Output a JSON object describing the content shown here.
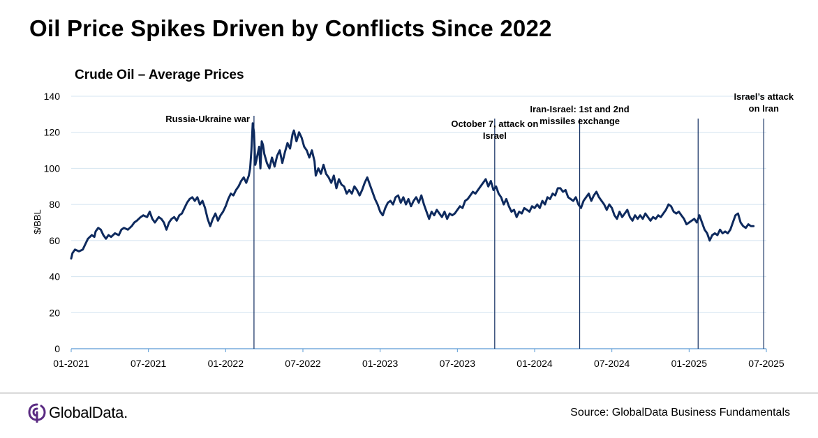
{
  "header": {
    "title": "Oil Price Spikes Driven by Conflicts Since 2022"
  },
  "footer": {
    "brand": "GlobalData.",
    "source": "Source: GlobalData Business Fundamentals",
    "logo_icon": "globaldata-logo-icon",
    "line_color": "#0e2a5e"
  },
  "chart_data": {
    "type": "line",
    "title": "Crude Oil – Average Prices",
    "xlabel": "",
    "ylabel": "$/BBL",
    "ylim": [
      0,
      140
    ],
    "yticks": [
      0,
      20,
      40,
      60,
      80,
      100,
      120,
      140
    ],
    "xlim": [
      0,
      54
    ],
    "x_unit": "months since 01-2021",
    "xticks": [
      {
        "x": 0,
        "label": "01-2021"
      },
      {
        "x": 6,
        "label": "07-2021"
      },
      {
        "x": 12,
        "label": "01-2022"
      },
      {
        "x": 18,
        "label": "07-2022"
      },
      {
        "x": 24,
        "label": "01-2023"
      },
      {
        "x": 30,
        "label": "07-2023"
      },
      {
        "x": 36,
        "label": "01-2024"
      },
      {
        "x": 42,
        "label": "07-2024"
      },
      {
        "x": 48,
        "label": "01-2025"
      },
      {
        "x": 54,
        "label": "07-2025"
      }
    ],
    "grid": true,
    "series": [
      {
        "name": "Crude Oil Average Price",
        "color": "#0e2a5e",
        "points": [
          [
            0,
            50
          ],
          [
            0.1,
            53
          ],
          [
            0.3,
            55
          ],
          [
            0.6,
            54
          ],
          [
            0.9,
            55
          ],
          [
            1.1,
            58
          ],
          [
            1.3,
            61
          ],
          [
            1.6,
            63
          ],
          [
            1.8,
            62
          ],
          [
            1.9,
            65
          ],
          [
            2.1,
            67
          ],
          [
            2.3,
            66
          ],
          [
            2.5,
            63
          ],
          [
            2.7,
            61
          ],
          [
            2.9,
            63
          ],
          [
            3.1,
            62
          ],
          [
            3.4,
            64
          ],
          [
            3.7,
            63
          ],
          [
            3.9,
            66
          ],
          [
            4.1,
            67
          ],
          [
            4.4,
            66
          ],
          [
            4.7,
            68
          ],
          [
            4.9,
            70
          ],
          [
            5.1,
            71
          ],
          [
            5.4,
            73
          ],
          [
            5.6,
            74
          ],
          [
            5.9,
            73
          ],
          [
            6.1,
            76
          ],
          [
            6.3,
            72
          ],
          [
            6.5,
            70
          ],
          [
            6.8,
            73
          ],
          [
            7.0,
            72
          ],
          [
            7.2,
            70
          ],
          [
            7.4,
            66
          ],
          [
            7.6,
            70
          ],
          [
            7.8,
            72
          ],
          [
            8.0,
            73
          ],
          [
            8.2,
            71
          ],
          [
            8.4,
            74
          ],
          [
            8.6,
            75
          ],
          [
            8.8,
            78
          ],
          [
            9.0,
            81
          ],
          [
            9.2,
            83
          ],
          [
            9.4,
            84
          ],
          [
            9.6,
            82
          ],
          [
            9.8,
            84
          ],
          [
            10.0,
            80
          ],
          [
            10.2,
            82
          ],
          [
            10.4,
            78
          ],
          [
            10.6,
            72
          ],
          [
            10.8,
            68
          ],
          [
            11.0,
            72
          ],
          [
            11.2,
            75
          ],
          [
            11.4,
            71
          ],
          [
            11.6,
            74
          ],
          [
            11.8,
            76
          ],
          [
            12.0,
            79
          ],
          [
            12.2,
            83
          ],
          [
            12.4,
            86
          ],
          [
            12.6,
            85
          ],
          [
            12.8,
            88
          ],
          [
            13.0,
            90
          ],
          [
            13.2,
            93
          ],
          [
            13.4,
            95
          ],
          [
            13.6,
            92
          ],
          [
            13.8,
            96
          ],
          [
            13.9,
            100
          ],
          [
            14.0,
            110
          ],
          [
            14.1,
            125
          ],
          [
            14.2,
            120
          ],
          [
            14.3,
            102
          ],
          [
            14.4,
            105
          ],
          [
            14.6,
            112
          ],
          [
            14.7,
            100
          ],
          [
            14.8,
            115
          ],
          [
            14.9,
            113
          ],
          [
            15.0,
            108
          ],
          [
            15.2,
            103
          ],
          [
            15.4,
            100
          ],
          [
            15.6,
            106
          ],
          [
            15.8,
            101
          ],
          [
            16.0,
            107
          ],
          [
            16.2,
            110
          ],
          [
            16.4,
            103
          ],
          [
            16.6,
            109
          ],
          [
            16.8,
            114
          ],
          [
            17.0,
            111
          ],
          [
            17.2,
            119
          ],
          [
            17.3,
            121
          ],
          [
            17.5,
            115
          ],
          [
            17.7,
            120
          ],
          [
            17.9,
            117
          ],
          [
            18.1,
            112
          ],
          [
            18.3,
            110
          ],
          [
            18.5,
            106
          ],
          [
            18.7,
            110
          ],
          [
            18.9,
            104
          ],
          [
            19.0,
            96
          ],
          [
            19.2,
            100
          ],
          [
            19.4,
            97
          ],
          [
            19.6,
            102
          ],
          [
            19.8,
            97
          ],
          [
            20.0,
            95
          ],
          [
            20.2,
            92
          ],
          [
            20.4,
            96
          ],
          [
            20.6,
            89
          ],
          [
            20.8,
            94
          ],
          [
            21.0,
            91
          ],
          [
            21.2,
            90
          ],
          [
            21.4,
            86
          ],
          [
            21.6,
            88
          ],
          [
            21.8,
            86
          ],
          [
            22.0,
            90
          ],
          [
            22.2,
            88
          ],
          [
            22.4,
            85
          ],
          [
            22.6,
            88
          ],
          [
            22.8,
            92
          ],
          [
            23.0,
            95
          ],
          [
            23.2,
            91
          ],
          [
            23.4,
            87
          ],
          [
            23.6,
            83
          ],
          [
            23.8,
            80
          ],
          [
            24.0,
            76
          ],
          [
            24.2,
            74
          ],
          [
            24.4,
            78
          ],
          [
            24.6,
            81
          ],
          [
            24.8,
            82
          ],
          [
            25.0,
            80
          ],
          [
            25.2,
            84
          ],
          [
            25.4,
            85
          ],
          [
            25.6,
            81
          ],
          [
            25.8,
            84
          ],
          [
            26.0,
            80
          ],
          [
            26.2,
            83
          ],
          [
            26.4,
            79
          ],
          [
            26.6,
            82
          ],
          [
            26.8,
            84
          ],
          [
            27.0,
            81
          ],
          [
            27.2,
            85
          ],
          [
            27.4,
            80
          ],
          [
            27.6,
            76
          ],
          [
            27.8,
            72
          ],
          [
            28.0,
            76
          ],
          [
            28.2,
            74
          ],
          [
            28.4,
            77
          ],
          [
            28.6,
            75
          ],
          [
            28.8,
            73
          ],
          [
            29.0,
            76
          ],
          [
            29.2,
            72
          ],
          [
            29.4,
            75
          ],
          [
            29.6,
            74
          ],
          [
            29.8,
            75
          ],
          [
            30.0,
            77
          ],
          [
            30.2,
            79
          ],
          [
            30.4,
            78
          ],
          [
            30.6,
            82
          ],
          [
            30.8,
            83
          ],
          [
            31.0,
            85
          ],
          [
            31.2,
            87
          ],
          [
            31.4,
            86
          ],
          [
            31.6,
            88
          ],
          [
            31.8,
            90
          ],
          [
            32.0,
            92
          ],
          [
            32.2,
            94
          ],
          [
            32.4,
            90
          ],
          [
            32.6,
            93
          ],
          [
            32.8,
            88
          ],
          [
            33.0,
            90
          ],
          [
            33.2,
            86
          ],
          [
            33.4,
            84
          ],
          [
            33.6,
            80
          ],
          [
            33.8,
            83
          ],
          [
            34.0,
            79
          ],
          [
            34.2,
            76
          ],
          [
            34.4,
            77
          ],
          [
            34.6,
            73
          ],
          [
            34.8,
            76
          ],
          [
            35.0,
            75
          ],
          [
            35.2,
            78
          ],
          [
            35.4,
            77
          ],
          [
            35.6,
            76
          ],
          [
            35.8,
            79
          ],
          [
            36.0,
            78
          ],
          [
            36.2,
            80
          ],
          [
            36.4,
            78
          ],
          [
            36.6,
            82
          ],
          [
            36.8,
            80
          ],
          [
            37.0,
            84
          ],
          [
            37.2,
            83
          ],
          [
            37.4,
            86
          ],
          [
            37.6,
            85
          ],
          [
            37.8,
            89
          ],
          [
            38.0,
            89
          ],
          [
            38.2,
            87
          ],
          [
            38.4,
            88
          ],
          [
            38.6,
            84
          ],
          [
            38.8,
            83
          ],
          [
            39.0,
            82
          ],
          [
            39.2,
            84
          ],
          [
            39.4,
            80
          ],
          [
            39.6,
            78
          ],
          [
            39.8,
            82
          ],
          [
            40.0,
            84
          ],
          [
            40.2,
            86
          ],
          [
            40.4,
            82
          ],
          [
            40.6,
            85
          ],
          [
            40.8,
            87
          ],
          [
            41.0,
            84
          ],
          [
            41.2,
            82
          ],
          [
            41.4,
            80
          ],
          [
            41.6,
            77
          ],
          [
            41.8,
            80
          ],
          [
            42.0,
            78
          ],
          [
            42.2,
            74
          ],
          [
            42.4,
            72
          ],
          [
            42.6,
            76
          ],
          [
            42.8,
            73
          ],
          [
            43.0,
            75
          ],
          [
            43.2,
            77
          ],
          [
            43.4,
            73
          ],
          [
            43.6,
            71
          ],
          [
            43.8,
            74
          ],
          [
            44.0,
            72
          ],
          [
            44.2,
            74
          ],
          [
            44.4,
            72
          ],
          [
            44.6,
            75
          ],
          [
            44.8,
            73
          ],
          [
            45.0,
            71
          ],
          [
            45.2,
            73
          ],
          [
            45.4,
            72
          ],
          [
            45.6,
            74
          ],
          [
            45.8,
            73
          ],
          [
            46.0,
            75
          ],
          [
            46.2,
            77
          ],
          [
            46.4,
            80
          ],
          [
            46.6,
            79
          ],
          [
            46.8,
            76
          ],
          [
            47.0,
            75
          ],
          [
            47.2,
            76
          ],
          [
            47.4,
            74
          ],
          [
            47.6,
            72
          ],
          [
            47.8,
            69
          ],
          [
            48.0,
            70
          ],
          [
            48.2,
            71
          ],
          [
            48.4,
            72
          ],
          [
            48.6,
            70
          ],
          [
            48.8,
            74
          ],
          [
            49.0,
            70
          ],
          [
            49.2,
            66
          ],
          [
            49.4,
            64
          ],
          [
            49.6,
            60
          ],
          [
            49.8,
            63
          ],
          [
            50.0,
            64
          ],
          [
            50.2,
            63
          ],
          [
            50.4,
            66
          ],
          [
            50.6,
            64
          ],
          [
            50.8,
            65
          ],
          [
            51.0,
            64
          ],
          [
            51.2,
            66
          ],
          [
            51.4,
            70
          ],
          [
            51.6,
            74
          ],
          [
            51.8,
            75
          ],
          [
            52.0,
            70
          ],
          [
            52.2,
            68
          ],
          [
            52.4,
            67
          ],
          [
            52.6,
            69
          ],
          [
            52.8,
            68
          ],
          [
            53.0,
            68
          ]
        ]
      }
    ],
    "annotations": [
      {
        "x": 14.2,
        "label_lines": [
          "Russia-Ukraine war"
        ],
        "anchor": "end"
      },
      {
        "x": 32.9,
        "label_lines": [
          "October 7, attack on",
          "Israel"
        ],
        "anchor": "middle"
      },
      {
        "x": 39.5,
        "label_lines": [
          "Iran-Israel: 1st and 2nd",
          "missiles exchange"
        ],
        "anchor": "middle"
      },
      {
        "x": 48.7,
        "label_lines": [],
        "anchor": "middle"
      },
      {
        "x": 53.8,
        "label_lines": [
          "Israel’s attack",
          "on Iran"
        ],
        "anchor": "middle"
      }
    ]
  }
}
